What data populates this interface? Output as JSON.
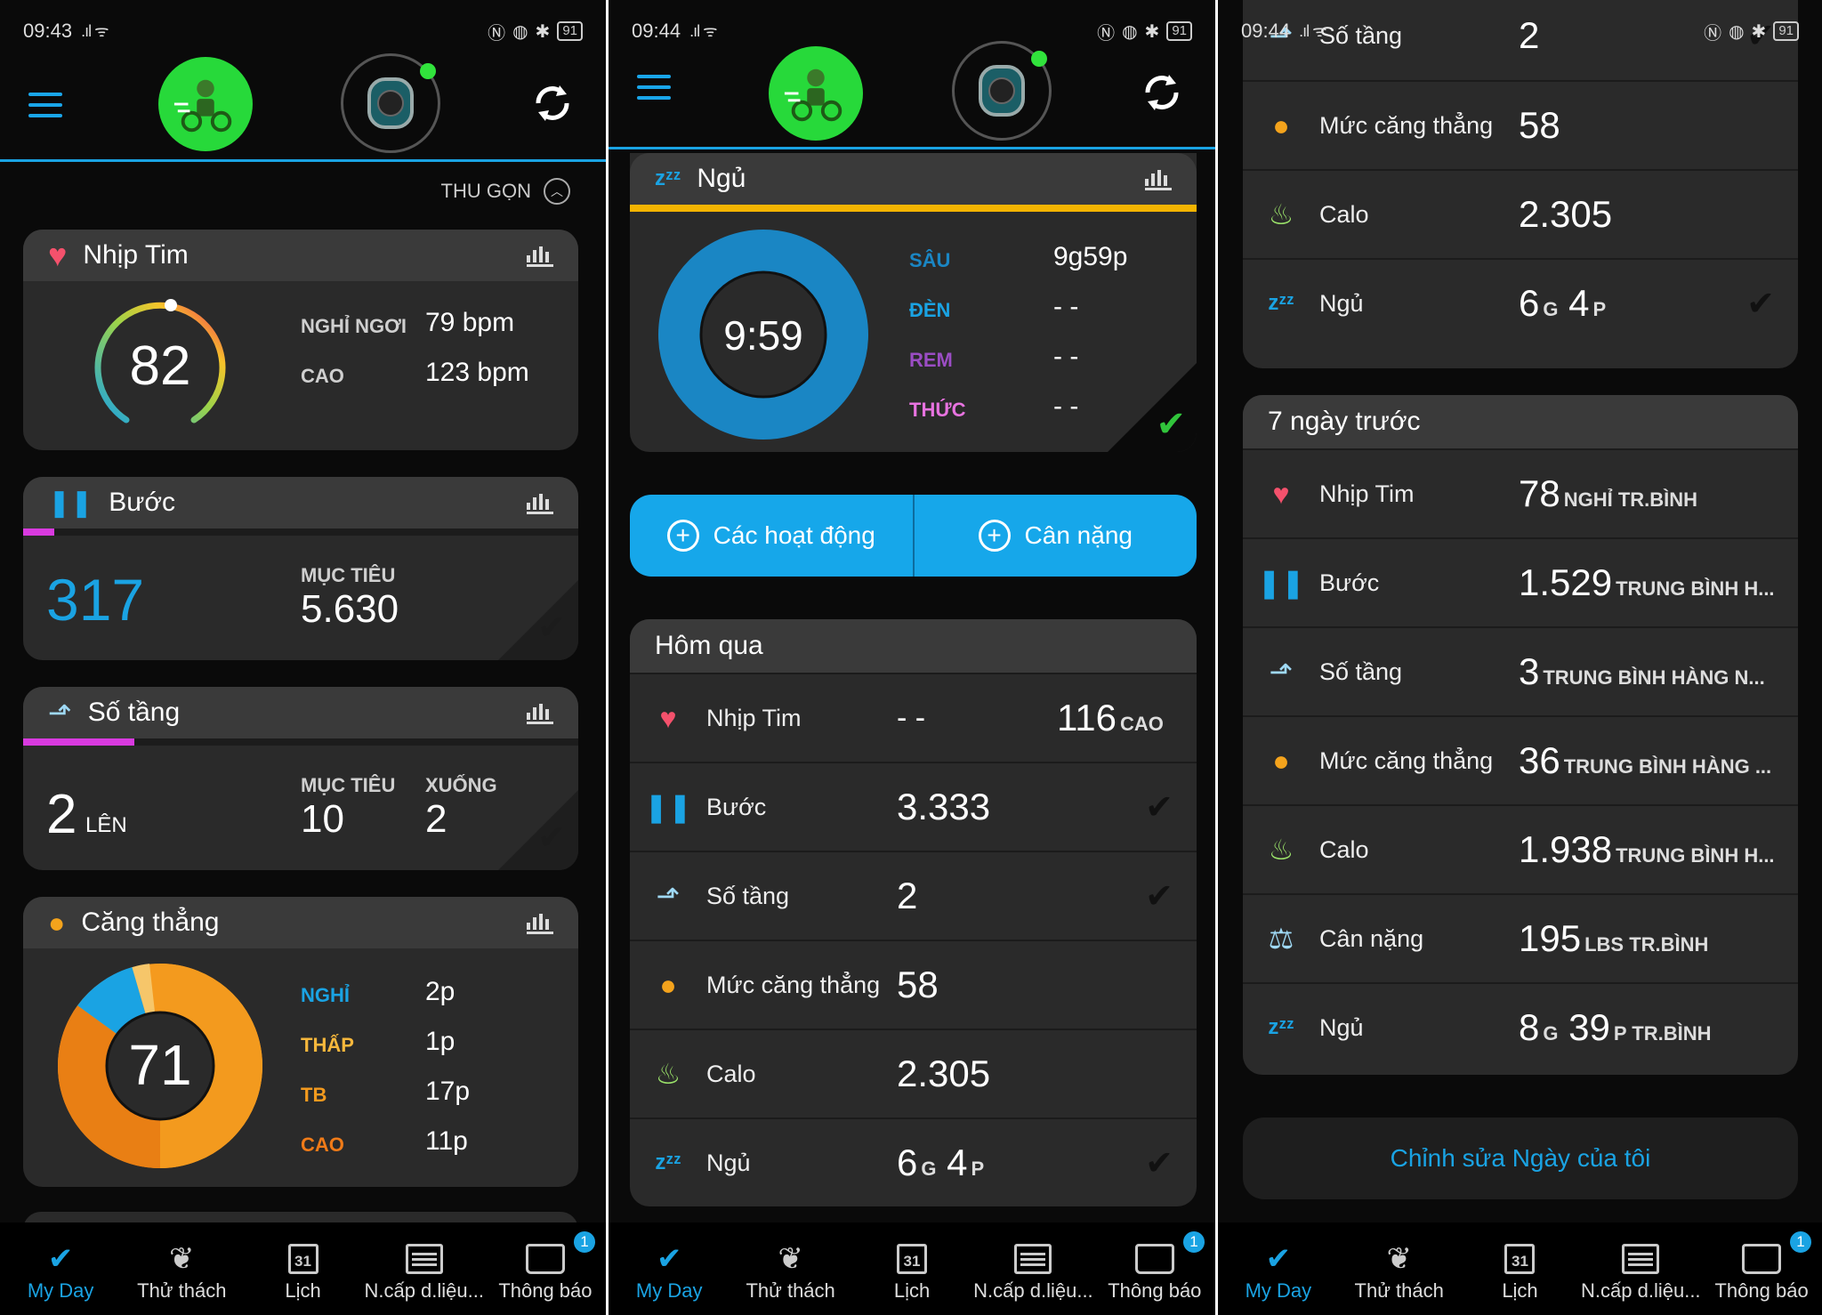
{
  "status": {
    "time1": "09:43",
    "time2": "09:44",
    "time3": "09:44",
    "battery": "91"
  },
  "collapse_label": "THU GỌN",
  "heart": {
    "title": "Nhịp Tim",
    "value": "82",
    "rest_label": "NGHỈ NGƠI",
    "rest_value": "79 bpm",
    "high_label": "CAO",
    "high_value": "123 bpm"
  },
  "steps": {
    "title": "Bước",
    "value": "317",
    "goal_label": "MỤC TIÊU",
    "goal_value": "5.630",
    "progress": 0.056
  },
  "floors": {
    "title": "Số tầng",
    "value": "2",
    "up_label": "LÊN",
    "goal_label": "MỤC TIÊU",
    "goal_value": "10",
    "down_label": "XUỐNG",
    "down_value": "2",
    "progress": 0.2
  },
  "stress": {
    "title": "Căng thẳng",
    "value": "71",
    "rows": [
      {
        "label": "NGHỈ",
        "value": "2p",
        "color": "#1aa3e3"
      },
      {
        "label": "THẤP",
        "value": "1p",
        "color": "#f6b73c"
      },
      {
        "label": "TB",
        "value": "17p",
        "color": "#f39a1e"
      },
      {
        "label": "CAO",
        "value": "11p",
        "color": "#f07b18"
      }
    ]
  },
  "sleep": {
    "title": "Ngủ",
    "value": "9:59",
    "rows": [
      {
        "label": "SÂU",
        "value": "9g59p",
        "color": "#1a86c4"
      },
      {
        "label": "ĐÈN",
        "value": "- -",
        "color": "#1aa3e3"
      },
      {
        "label": "REM",
        "value": "- -",
        "color": "#9b4dc4"
      },
      {
        "label": "THỨC",
        "value": "- -",
        "color": "#e873e0"
      }
    ]
  },
  "actions": {
    "activities": "Các hoạt động",
    "weight": "Cân nặng"
  },
  "yesterday": {
    "title": "Hôm qua",
    "rows": [
      {
        "name": "Nhịp Tim",
        "value": "- -",
        "extra": "116",
        "extra_unit": "CAO"
      },
      {
        "name": "Bước",
        "value": "3.333"
      },
      {
        "name": "Số tầng",
        "value": "2"
      },
      {
        "name": "Mức căng thẳng",
        "value": "58"
      },
      {
        "name": "Calo",
        "value": "2.305"
      },
      {
        "name": "Ngủ",
        "v1": "6",
        "u1": "G",
        "v2": "4",
        "u2": "P"
      }
    ]
  },
  "p3top": {
    "rows": [
      {
        "name": "Số tầng",
        "value": "2"
      },
      {
        "name": "Mức căng thẳng",
        "value": "58"
      },
      {
        "name": "Calo",
        "value": "2.305"
      },
      {
        "name": "Ngủ",
        "v1": "6",
        "u1": "G",
        "v2": "4",
        "u2": "P"
      }
    ]
  },
  "week": {
    "title": "7 ngày trước",
    "rows": [
      {
        "name": "Nhịp Tim",
        "value": "78",
        "unit": "NGHỈ TR.BÌNH"
      },
      {
        "name": "Bước",
        "value": "1.529",
        "unit": "TRUNG BÌNH H..."
      },
      {
        "name": "Số tầng",
        "value": "3",
        "unit": "TRUNG BÌNH HÀNG N..."
      },
      {
        "name": "Mức căng thẳng",
        "value": "36",
        "unit": "TRUNG BÌNH HÀNG ..."
      },
      {
        "name": "Calo",
        "value": "1.938",
        "unit": "TRUNG BÌNH H..."
      },
      {
        "name": "Cân nặng",
        "value": "195",
        "unit": "LBS TR.BÌNH"
      },
      {
        "name": "Ngủ",
        "v1": "8",
        "u1": "G",
        "v2": "39",
        "u2": "P TR.BÌNH"
      }
    ]
  },
  "edit_label": "Chỉnh sửa Ngày của tôi",
  "tabs": {
    "myday": "My Day",
    "challenge": "Thử thách",
    "calendar": "Lịch",
    "calendar_num": "31",
    "news": "N.cấp d.liệu...",
    "inbox": "Thông báo",
    "badge": "1"
  }
}
